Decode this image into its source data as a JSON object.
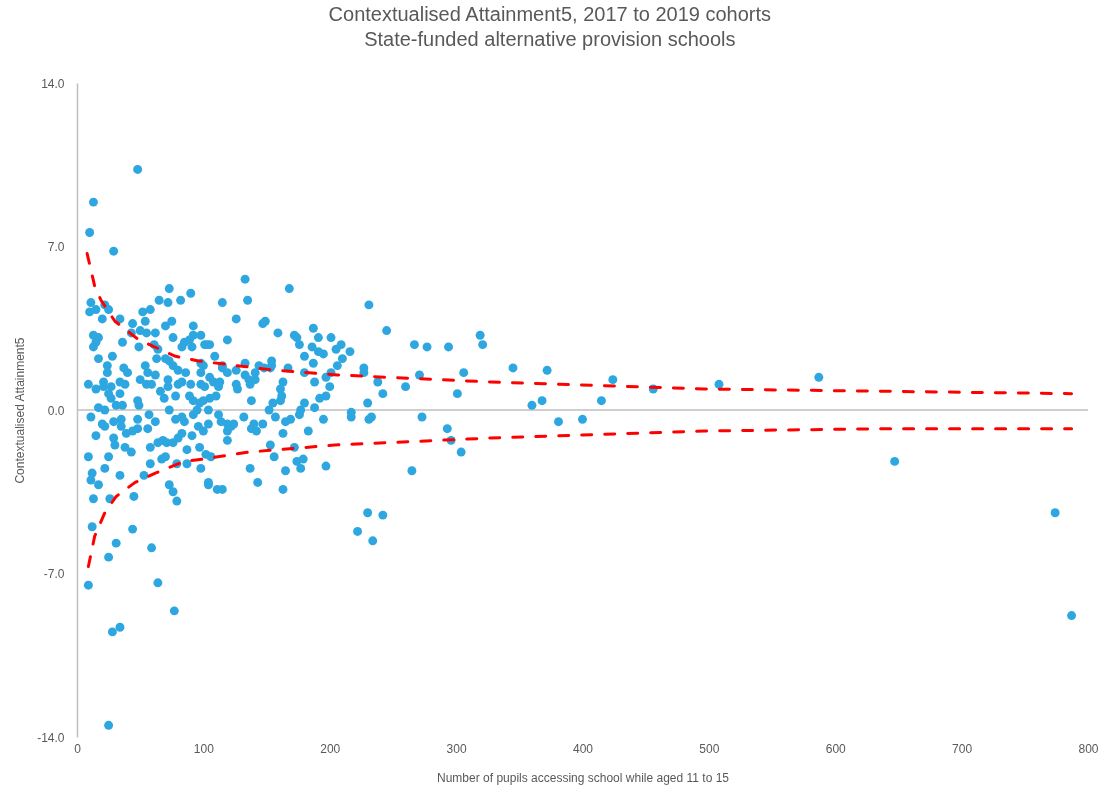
{
  "chart_data": {
    "type": "scatter",
    "title": "Contextualised Attainment5, 2017 to 2019 cohorts",
    "subtitle": "State-funded alternative provision schools",
    "xlabel": "Number of pupils accessing school while aged 11 to 15",
    "ylabel": "Contextualised Attainment5",
    "xlim": [
      0,
      800
    ],
    "xticks": [
      0,
      100,
      200,
      300,
      400,
      500,
      600,
      700,
      800
    ],
    "ylim": [
      -14,
      14
    ],
    "yticks": [
      {
        "value": 14,
        "label": "14.0"
      },
      {
        "value": 7,
        "label": "7.0"
      },
      {
        "value": 0,
        "label": "0.0"
      },
      {
        "value": -7,
        "label": "-7.0"
      },
      {
        "value": -14,
        "label": "-14.0"
      }
    ],
    "grid": false,
    "ref_lines": [
      {
        "axis": "y",
        "value": 0,
        "color": "#bfbfbf"
      }
    ],
    "series": [
      {
        "type": "scatter",
        "color": "#2ea7e0",
        "marker": "circle",
        "x": [
          48,
          13,
          10,
          29,
          73,
          90,
          11,
          10,
          15,
          22,
          25,
          20,
          34,
          65,
          72,
          82,
          52,
          58,
          54,
          44,
          70,
          75,
          92,
          13,
          17,
          15,
          13,
          43,
          50,
          55,
          62,
          36,
          49,
          76,
          61,
          64,
          85,
          89,
          83,
          92,
          91,
          98,
          101,
          17,
          28,
          63,
          24,
          24,
          37,
          40,
          54,
          56,
          62,
          70,
          73,
          76,
          80,
          86,
          98,
          98,
          9,
          15,
          21,
          21,
          27,
          34,
          38,
          25,
          27,
          34,
          50,
          55,
          59,
          66,
          69,
          72,
          72,
          78,
          80,
          83,
          90,
          89,
          92,
          98,
          100,
          17,
          22,
          31,
          36,
          48,
          49,
          73,
          133,
          168,
          115,
          135,
          126,
          147,
          149,
          159,
          187,
          119,
          105,
          103,
          172,
          174,
          176,
          191,
          186,
          201,
          205,
          191,
          195,
          180,
          187,
          206,
          109,
          100,
          115,
          115,
          119,
          126,
          133,
          133,
          136,
          141,
          141,
          144,
          148,
          154,
          154,
          153,
          167,
          180,
          188,
          197,
          201,
          200,
          197,
          192,
          188,
          101,
          105,
          108,
          112,
          113,
          110,
          105,
          97,
          126,
          127,
          137,
          138,
          163,
          161,
          162,
          161,
          155,
          152,
          180,
          177,
          104,
          112,
          11,
          15,
          20,
          22,
          29,
          29,
          30,
          35,
          35,
          38,
          43,
          39,
          44,
          48,
          48,
          56,
          57,
          62,
          58,
          64,
          68,
          71,
          76,
          80,
          83,
          91,
          67,
          70,
          79,
          87,
          87,
          97,
          98,
          78,
          83,
          85,
          92,
          96,
          9,
          25,
          22,
          12,
          11,
          17,
          34,
          13,
          26,
          45,
          53,
          58,
          73,
          76,
          79,
          12,
          44,
          31,
          25,
          59,
          9,
          64,
          77,
          28,
          34,
          25,
          95,
          114,
          119,
          124,
          122,
          104,
          100,
          119,
          119,
          132,
          140,
          138,
          142,
          147,
          157,
          165,
          169,
          163,
          176,
          183,
          195,
          102,
          106,
          153,
          156,
          172,
          174,
          179,
          177,
          197,
          137,
          143,
          165,
          163,
          104,
          104,
          111,
          115,
          231,
          245,
          209,
          216,
          210,
          227,
          227,
          238,
          242,
          230,
          217,
          217,
          233,
          231,
          260,
          271,
          267,
          277,
          273,
          294,
          319,
          321,
          306,
          301,
          293,
          296,
          304,
          265,
          230,
          242,
          222,
          234,
          345,
          372,
          360,
          368,
          381,
          400,
          415,
          424,
          456,
          508,
          587,
          647,
          774,
          787
        ],
        "values": [
          10.3,
          8.9,
          7.6,
          6.8,
          5.2,
          5.0,
          4.6,
          4.2,
          4.3,
          4.5,
          4.3,
          3.9,
          3.9,
          4.7,
          4.6,
          4.7,
          4.2,
          4.3,
          3.8,
          3.7,
          3.6,
          3.8,
          3.6,
          3.2,
          3.1,
          2.9,
          2.7,
          3.3,
          3.4,
          3.3,
          3.3,
          2.9,
          2.7,
          3.1,
          2.8,
          2.6,
          2.9,
          3.0,
          2.7,
          3.2,
          2.7,
          3.2,
          2.8,
          2.2,
          2.3,
          2.2,
          1.9,
          1.6,
          1.8,
          1.6,
          1.9,
          1.6,
          1.5,
          2.2,
          2.1,
          1.9,
          1.7,
          1.6,
          2.0,
          1.6,
          1.1,
          0.9,
          1.2,
          1.0,
          1.0,
          1.2,
          1.1,
          0.7,
          0.5,
          0.7,
          1.3,
          1.1,
          1.1,
          0.8,
          0.5,
          1.3,
          1.0,
          0.6,
          1.1,
          1.2,
          1.1,
          0.6,
          0.4,
          1.1,
          0.4,
          0.1,
          0.0,
          0.2,
          0.2,
          0.4,
          0.2,
          0.0,
          5.6,
          5.2,
          4.6,
          4.7,
          3.9,
          3.7,
          3.8,
          3.3,
          3.5,
          3.0,
          2.8,
          2.8,
          3.2,
          3.1,
          2.8,
          3.1,
          2.7,
          3.1,
          2.6,
          2.5,
          2.4,
          2.3,
          2.0,
          1.9,
          2.3,
          1.9,
          1.9,
          1.8,
          1.6,
          1.7,
          2.0,
          1.5,
          1.3,
          1.3,
          1.6,
          1.9,
          1.8,
          1.9,
          2.1,
          1.8,
          1.8,
          1.6,
          1.2,
          1.4,
          1.6,
          1.0,
          0.6,
          0.5,
          0.1,
          1.0,
          1.4,
          1.2,
          1.0,
          1.2,
          0.6,
          0.5,
          0.3,
          1.1,
          0.9,
          1.1,
          0.4,
          1.2,
          0.9,
          0.6,
          0.4,
          0.3,
          0.0,
          0.3,
          0.0,
          0.0,
          -0.2,
          -0.3,
          -1.1,
          -0.6,
          -0.7,
          -0.5,
          -1.2,
          -1.5,
          -0.4,
          -0.7,
          -1.6,
          -1.8,
          -1.0,
          -0.9,
          -0.8,
          -0.4,
          -0.8,
          -0.2,
          -0.5,
          -1.6,
          -1.4,
          -1.3,
          -1.4,
          -1.4,
          -1.2,
          -1.0,
          -1.1,
          -2.1,
          -2.0,
          -2.3,
          -2.3,
          -1.7,
          -1.6,
          -2.5,
          -0.4,
          -0.3,
          -0.5,
          -0.2,
          -0.7,
          -2.0,
          -2.0,
          -2.5,
          -2.7,
          -3.0,
          -3.2,
          -2.8,
          -3.8,
          -3.8,
          -3.7,
          -2.8,
          -2.3,
          -3.2,
          -3.5,
          -3.9,
          -5.0,
          -5.1,
          -5.7,
          -6.3,
          -5.9,
          -7.5,
          -7.4,
          -8.6,
          -9.5,
          -9.3,
          -13.5,
          0.0,
          -0.5,
          -0.6,
          -0.6,
          -0.7,
          -0.6,
          -0.9,
          -0.9,
          -1.3,
          -0.3,
          -0.6,
          -0.8,
          -0.9,
          -0.6,
          -0.3,
          -0.5,
          -0.4,
          -1.0,
          -0.2,
          -0.9,
          -0.4,
          -1.9,
          -2.0,
          -1.5,
          -2.0,
          -1.6,
          -2.2,
          -2.1,
          -2.5,
          -2.4,
          -2.5,
          -3.1,
          -2.6,
          -3.4,
          -3.1,
          -3.2,
          -3.4,
          -3.4,
          4.5,
          3.4,
          2.8,
          2.5,
          2.2,
          1.8,
          1.6,
          1.2,
          0.7,
          0.3,
          -0.1,
          -0.3,
          -0.3,
          -0.4,
          1.0,
          1.5,
          2.8,
          2.7,
          -0.3,
          2.7,
          3.2,
          2.8,
          1.6,
          0.7,
          -0.8,
          -1.3,
          -1.8,
          -2.6,
          -4.4,
          -4.5,
          -5.2,
          -5.6,
          1.8,
          1.7,
          0.2,
          0.4,
          -0.5,
          -0.4,
          0.4,
          1.3,
          0.9,
          1.1,
          1.4,
          -2.2,
          -4.4,
          -8.8
        ]
      },
      {
        "type": "line",
        "color": "#ff0000",
        "line_style": "dashed",
        "marker": "none",
        "x": [
          8,
          14,
          19,
          30,
          49,
          78,
          96,
          157,
          206,
          327,
          496,
          641,
          787
        ],
        "values": [
          6.7,
          5.3,
          4.7,
          3.8,
          3.0,
          2.3,
          2.1,
          1.7,
          1.5,
          1.2,
          0.9,
          0.8,
          0.7
        ]
      },
      {
        "type": "line",
        "color": "#ff0000",
        "line_style": "dashed",
        "marker": "none",
        "x": [
          9,
          14,
          22,
          31,
          46,
          62,
          85,
          100,
          136,
          204,
          327,
          496,
          641,
          787
        ],
        "values": [
          -6.7,
          -5.4,
          -4.4,
          -3.7,
          -3.1,
          -2.7,
          -2.2,
          -2.1,
          -1.8,
          -1.5,
          -1.2,
          -0.9,
          -0.8,
          -0.8
        ]
      }
    ]
  }
}
